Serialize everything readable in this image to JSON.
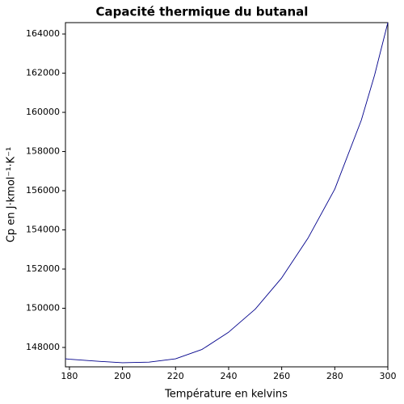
{
  "chart_data": {
    "type": "line",
    "title": "Capacité thermique du butanal",
    "x_label": "Température en kelvins",
    "y_label": "Cp en J·kmol⁻¹·K⁻¹",
    "x": [
      178.5,
      180,
      190,
      200,
      210,
      220,
      230,
      240,
      250,
      260,
      270,
      280,
      290,
      295,
      300
    ],
    "series": [
      {
        "name": "Cp",
        "color": "#00008b",
        "values": [
          147420,
          147400,
          147300,
          147220,
          147250,
          147420,
          147900,
          148780,
          149950,
          151550,
          153600,
          156080,
          159600,
          161900,
          164580
        ]
      }
    ],
    "xlim": [
      178.5,
      300
    ],
    "xticks": [
      180,
      200,
      220,
      240,
      260,
      280,
      300
    ],
    "ylim": [
      147010,
      164580
    ],
    "yticks": [
      148000,
      150000,
      152000,
      154000,
      156000,
      158000,
      160000,
      162000,
      164000
    ],
    "grid": false
  }
}
